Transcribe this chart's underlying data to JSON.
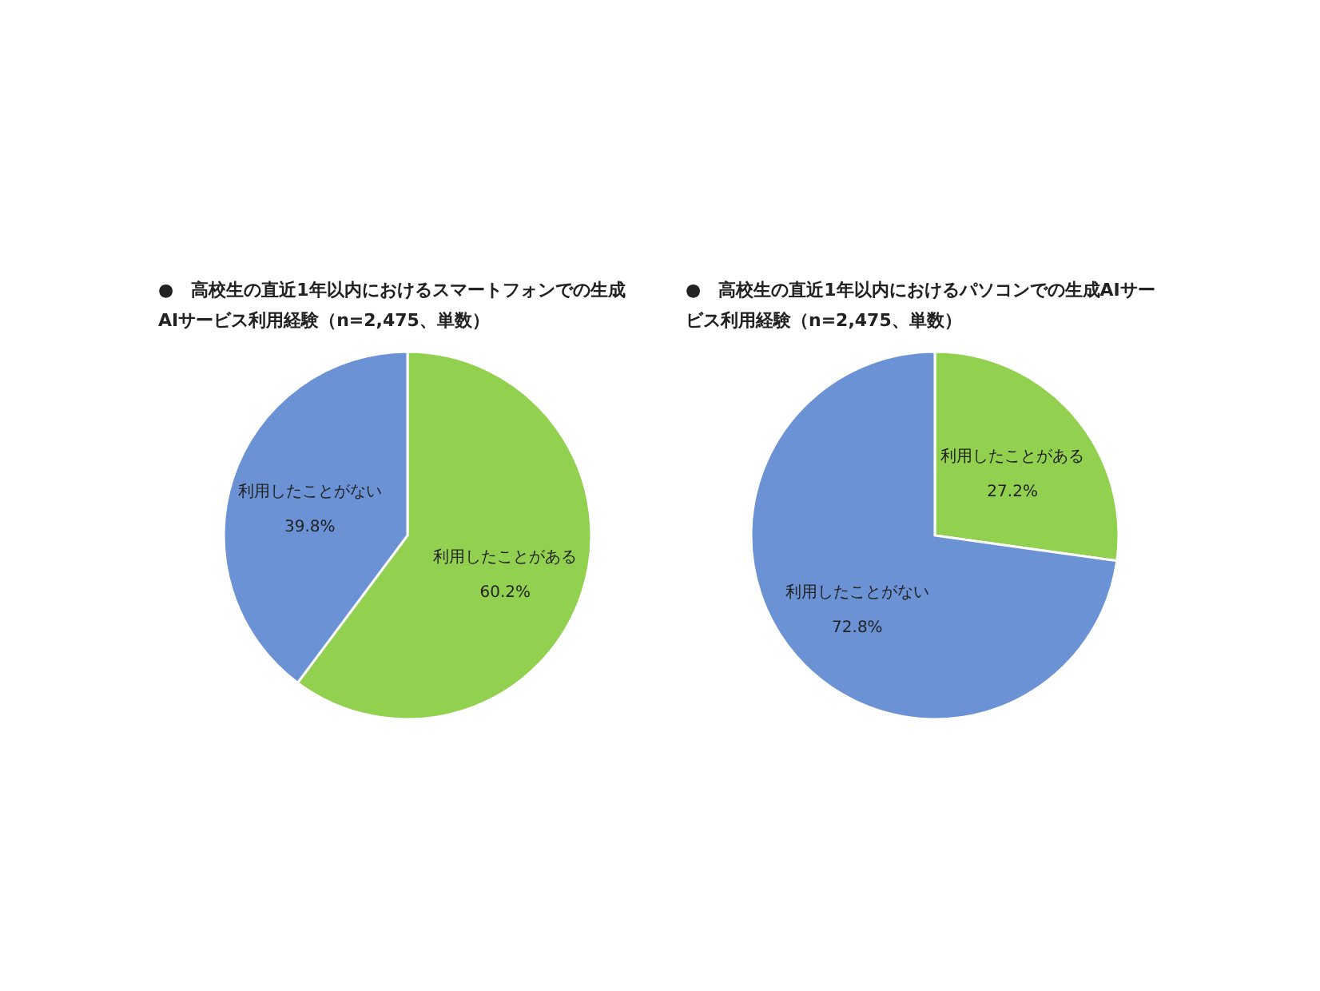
{
  "chart_data": [
    {
      "type": "pie",
      "title": "●　高校生の直近1年以内におけるスマートフォンでの生成AIサービス利用経験（n=2,475、単数）",
      "categories": [
        "利用したことがある",
        "利用したことがない"
      ],
      "values": [
        60.2,
        39.8
      ],
      "colors": [
        "#92d050",
        "#6a92d4"
      ],
      "value_labels": [
        "60.2%",
        "39.8%"
      ]
    },
    {
      "type": "pie",
      "title": "●　高校生の直近1年以内におけるパソコンでの生成AIサービス利用経験（n=2,475、単数）",
      "categories": [
        "利用したことがある",
        "利用したことがない"
      ],
      "values": [
        27.2,
        72.8
      ],
      "colors": [
        "#92d050",
        "#6a92d4"
      ],
      "value_labels": [
        "27.2%",
        "72.8%"
      ]
    }
  ]
}
